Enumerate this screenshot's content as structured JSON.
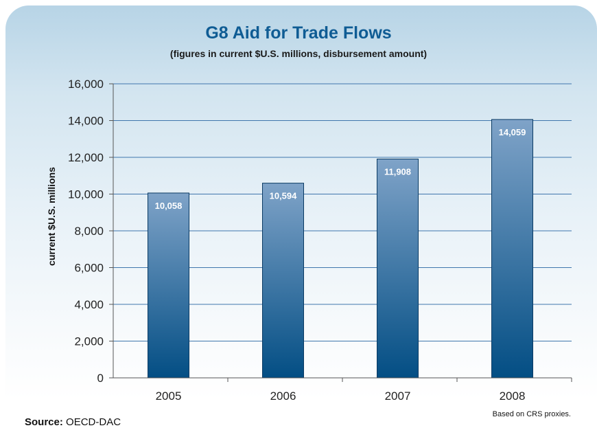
{
  "chart_data": {
    "type": "bar",
    "title": "G8 Aid for Trade Flows",
    "subtitle": "(figures in current $U.S. millions, disbursement amount)",
    "xlabel": "",
    "ylabel": "current $U.S. millions",
    "categories": [
      "2005",
      "2006",
      "2007",
      "2008"
    ],
    "values": [
      10058,
      10594,
      11908,
      14059
    ],
    "value_labels": [
      "10,058",
      "10,594",
      "11,908",
      "14,059"
    ],
    "ylim": [
      0,
      16000
    ],
    "yticks": [
      0,
      2000,
      4000,
      6000,
      8000,
      10000,
      12000,
      14000,
      16000
    ],
    "ytick_labels": [
      "0",
      "2,000",
      "4,000",
      "6,000",
      "8,000",
      "10,000",
      "12,000",
      "14,000",
      "16,000"
    ],
    "grid": true,
    "legend": "none"
  },
  "footer": {
    "source_label": "Source:",
    "source_value": "OECD-DAC",
    "note": "Based on CRS proxies."
  },
  "colors": {
    "title": "#0f5c94",
    "bar_top": "#7fa3c8",
    "bar_bottom": "#034e84",
    "gridline": "#3f76ad"
  }
}
